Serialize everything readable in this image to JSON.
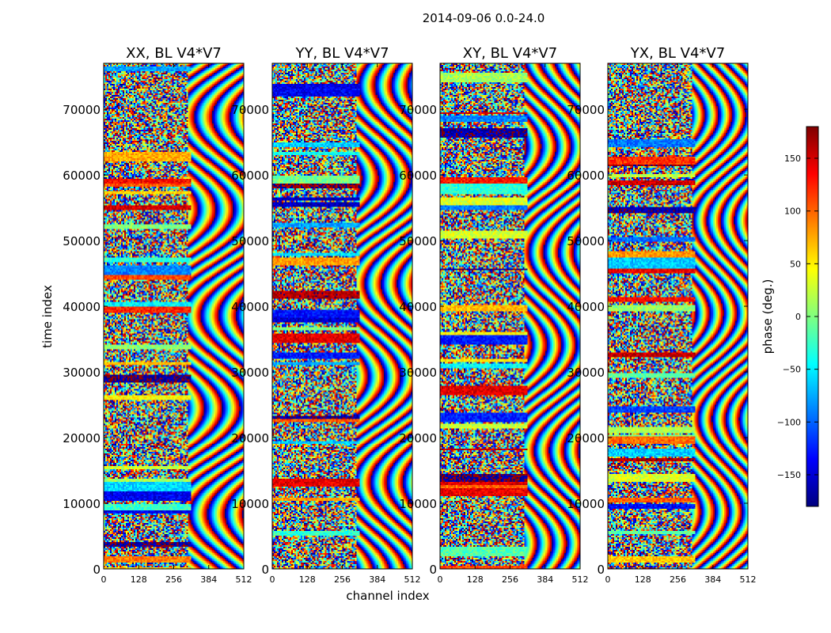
{
  "figure": {
    "suptitle": "2014-09-06 0.0-24.0"
  },
  "chart_data": {
    "type": "heatmap",
    "suptitle": "2014-09-06 0.0-24.0",
    "xlabel": "channel index",
    "ylabel": "time index",
    "xlim": [
      0,
      512
    ],
    "ylim": [
      0,
      77000
    ],
    "xticks": [
      "0",
      "128",
      "256",
      "384",
      "512"
    ],
    "yticks": [
      "0",
      "10000",
      "20000",
      "30000",
      "40000",
      "50000",
      "60000",
      "70000"
    ],
    "panels": [
      {
        "title": "XX, BL V4*V7"
      },
      {
        "title": "YY, BL V4*V7"
      },
      {
        "title": "XY, BL V4*V7"
      },
      {
        "title": "YX, BL V4*V7"
      }
    ],
    "colorbar": {
      "label": "phase (deg.)",
      "range": [
        -180,
        180
      ],
      "ticks": [
        "150",
        "100",
        "50",
        "0",
        "−50",
        "−100",
        "−150"
      ],
      "tick_values": [
        150,
        100,
        50,
        0,
        -50,
        -100,
        -150
      ],
      "colormap": "jet"
    }
  }
}
